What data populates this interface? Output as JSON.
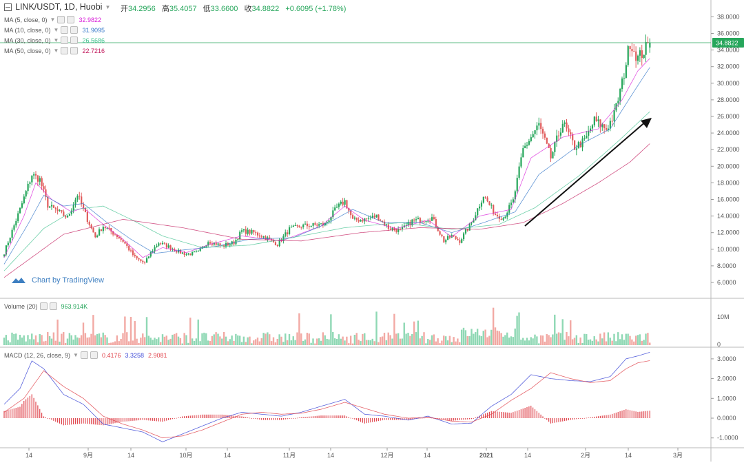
{
  "header": {
    "symbol": "LINK/USDT, 1D, Huobi",
    "open_label": "开",
    "open": "34.2956",
    "high_label": "高",
    "high": "35.4057",
    "low_label": "低",
    "low": "33.6600",
    "close_label": "收",
    "close": "34.8822",
    "change": "+0.6095 (+1.78%)"
  },
  "indicators": [
    {
      "label": "MA (5, close, 0)",
      "value": "32.9822",
      "color": "#d81bd8"
    },
    {
      "label": "MA (10, close, 0)",
      "value": "31.9095",
      "color": "#2e73c7"
    },
    {
      "label": "MA (30, close, 0)",
      "value": "26.5686",
      "color": "#3fc08e"
    },
    {
      "label": "MA (50, close, 0)",
      "value": "22.7216",
      "color": "#c2185b"
    }
  ],
  "volume_indicator": {
    "label": "Volume (20)",
    "value": "963.914K",
    "color": "#26a65b"
  },
  "macd_indicator": {
    "label": "MACD (12, 26, close, 9)",
    "hist": "0.4176",
    "macd": "3.3258",
    "signal": "2.9081"
  },
  "watermark": "Chart by TradingView",
  "colors": {
    "up": "#26a65b",
    "up_fill": "#8fd8b4",
    "down": "#e05b5b",
    "down_fill": "#f2a9a4",
    "macd": "#3b47d6",
    "signal": "#e0454d",
    "axis_text": "#555555"
  },
  "chart_data": {
    "type": "candlestick",
    "price_axis": {
      "ticks": [
        6,
        8,
        10,
        12,
        14,
        16,
        18,
        20,
        22,
        24,
        26,
        28,
        30,
        32,
        34,
        36,
        38
      ],
      "labels": [
        "6.0000",
        "8.0000",
        "10.0000",
        "12.0000",
        "14.0000",
        "16.0000",
        "18.0000",
        "20.0000",
        "22.0000",
        "24.0000",
        "26.0000",
        "28.0000",
        "30.0000",
        "32.0000",
        "34.0000",
        "36.0000",
        "38.0000"
      ],
      "current": "34.8822"
    },
    "volume_axis": {
      "labels": [
        "10M",
        "0"
      ]
    },
    "macd_axis": {
      "ticks": [
        3,
        2,
        1,
        0,
        -1
      ],
      "labels": [
        "3.0000",
        "2.0000",
        "1.0000",
        "0.0000",
        "-1.0000"
      ]
    },
    "x_labels": [
      "14",
      "9月",
      "14",
      "10月",
      "14",
      "11月",
      "14",
      "12月",
      "14",
      "2021",
      "14",
      "2月",
      "14",
      "3月"
    ],
    "price_anchors": [
      [
        0,
        9.6
      ],
      [
        8,
        14.8
      ],
      [
        14,
        19
      ],
      [
        18,
        18.4
      ],
      [
        22,
        15.3
      ],
      [
        28,
        14.4
      ],
      [
        32,
        13.8
      ],
      [
        37,
        16.6
      ],
      [
        42,
        13.6
      ],
      [
        46,
        11.5
      ],
      [
        50,
        12.8
      ],
      [
        56,
        11.8
      ],
      [
        60,
        11.0
      ],
      [
        66,
        9.0
      ],
      [
        71,
        8.3
      ],
      [
        74,
        9.6
      ],
      [
        78,
        10.8
      ],
      [
        84,
        10.2
      ],
      [
        88,
        9.7
      ],
      [
        92,
        9.4
      ],
      [
        98,
        9.6
      ],
      [
        103,
        11.0
      ],
      [
        110,
        10.4
      ],
      [
        116,
        10.8
      ],
      [
        120,
        12.2
      ],
      [
        126,
        12.0
      ],
      [
        132,
        11.4
      ],
      [
        138,
        10.6
      ],
      [
        144,
        12.4
      ],
      [
        150,
        12.8
      ],
      [
        156,
        12.9
      ],
      [
        162,
        13.0
      ],
      [
        168,
        15.0
      ],
      [
        172,
        15.8
      ],
      [
        176,
        13.5
      ],
      [
        182,
        13.6
      ],
      [
        188,
        14.0
      ],
      [
        194,
        12.6
      ],
      [
        200,
        12.2
      ],
      [
        206,
        13.4
      ],
      [
        212,
        13.6
      ],
      [
        216,
        13.8
      ],
      [
        222,
        11.0
      ],
      [
        226,
        11.6
      ],
      [
        230,
        11.0
      ],
      [
        236,
        13.2
      ],
      [
        242,
        16.5
      ],
      [
        248,
        14.2
      ],
      [
        252,
        13.8
      ],
      [
        257,
        15.8
      ],
      [
        262,
        22.0
      ],
      [
        270,
        25.0
      ],
      [
        276,
        21.0
      ],
      [
        282,
        25.3
      ],
      [
        288,
        22.3
      ],
      [
        293,
        23.0
      ],
      [
        298,
        25.5
      ],
      [
        304,
        24.5
      ],
      [
        308,
        26.2
      ],
      [
        312,
        30.0
      ],
      [
        316,
        35.0
      ],
      [
        320,
        33.0
      ],
      [
        324,
        34.2
      ],
      [
        326,
        34.88
      ]
    ],
    "ma_anchors": {
      "ma5": [
        [
          0,
          9.0
        ],
        [
          10,
          14.0
        ],
        [
          16,
          18.0
        ],
        [
          24,
          16.0
        ],
        [
          34,
          14.5
        ],
        [
          40,
          15.0
        ],
        [
          50,
          13.0
        ],
        [
          60,
          11.2
        ],
        [
          70,
          9.0
        ],
        [
          80,
          10.2
        ],
        [
          92,
          9.6
        ],
        [
          104,
          10.6
        ],
        [
          120,
          11.6
        ],
        [
          140,
          11.0
        ],
        [
          160,
          12.8
        ],
        [
          172,
          15.2
        ],
        [
          182,
          13.5
        ],
        [
          198,
          12.5
        ],
        [
          214,
          13.5
        ],
        [
          226,
          11.5
        ],
        [
          240,
          14.0
        ],
        [
          256,
          14.8
        ],
        [
          266,
          21.0
        ],
        [
          282,
          23.5
        ],
        [
          300,
          24.5
        ],
        [
          312,
          28.0
        ],
        [
          320,
          31.5
        ],
        [
          326,
          32.98
        ]
      ],
      "ma10": [
        [
          0,
          8.2
        ],
        [
          12,
          13.0
        ],
        [
          20,
          16.5
        ],
        [
          30,
          15.2
        ],
        [
          40,
          15.5
        ],
        [
          52,
          13.2
        ],
        [
          64,
          11.2
        ],
        [
          76,
          9.5
        ],
        [
          90,
          9.9
        ],
        [
          106,
          10.3
        ],
        [
          124,
          11.2
        ],
        [
          146,
          11.4
        ],
        [
          164,
          13.2
        ],
        [
          176,
          14.8
        ],
        [
          192,
          13.2
        ],
        [
          210,
          13.2
        ],
        [
          226,
          12.0
        ],
        [
          242,
          13.2
        ],
        [
          258,
          14.5
        ],
        [
          270,
          19.0
        ],
        [
          290,
          22.5
        ],
        [
          306,
          24.5
        ],
        [
          318,
          29.0
        ],
        [
          326,
          31.91
        ]
      ],
      "ma30": [
        [
          0,
          7.4
        ],
        [
          20,
          12.5
        ],
        [
          36,
          14.8
        ],
        [
          50,
          15.2
        ],
        [
          64,
          13.6
        ],
        [
          80,
          11.6
        ],
        [
          100,
          10.2
        ],
        [
          124,
          10.5
        ],
        [
          150,
          11.6
        ],
        [
          172,
          12.6
        ],
        [
          200,
          13.2
        ],
        [
          226,
          12.4
        ],
        [
          250,
          13.0
        ],
        [
          268,
          15.0
        ],
        [
          290,
          18.8
        ],
        [
          310,
          23.0
        ],
        [
          326,
          26.57
        ]
      ],
      "ma50": [
        [
          0,
          6.6
        ],
        [
          30,
          11.8
        ],
        [
          60,
          13.6
        ],
        [
          90,
          12.6
        ],
        [
          120,
          11.2
        ],
        [
          150,
          11.0
        ],
        [
          180,
          12.0
        ],
        [
          210,
          12.6
        ],
        [
          240,
          12.4
        ],
        [
          262,
          13.2
        ],
        [
          282,
          15.5
        ],
        [
          300,
          18.0
        ],
        [
          316,
          20.5
        ],
        [
          326,
          22.72
        ]
      ]
    },
    "macd_anchors": {
      "macd": [
        [
          0,
          0.7
        ],
        [
          8,
          1.5
        ],
        [
          14,
          2.9
        ],
        [
          20,
          2.5
        ],
        [
          30,
          1.2
        ],
        [
          40,
          0.7
        ],
        [
          50,
          -0.3
        ],
        [
          60,
          -0.5
        ],
        [
          70,
          -0.7
        ],
        [
          80,
          -1.2
        ],
        [
          90,
          -0.8
        ],
        [
          100,
          -0.4
        ],
        [
          110,
          0.0
        ],
        [
          120,
          0.3
        ],
        [
          130,
          0.2
        ],
        [
          140,
          0.1
        ],
        [
          150,
          0.3
        ],
        [
          160,
          0.6
        ],
        [
          172,
          0.95
        ],
        [
          182,
          0.2
        ],
        [
          192,
          0.1
        ],
        [
          204,
          -0.1
        ],
        [
          214,
          0.1
        ],
        [
          226,
          -0.3
        ],
        [
          236,
          -0.25
        ],
        [
          246,
          0.6
        ],
        [
          256,
          1.2
        ],
        [
          266,
          2.2
        ],
        [
          276,
          2.0
        ],
        [
          286,
          1.9
        ],
        [
          296,
          1.85
        ],
        [
          306,
          2.1
        ],
        [
          314,
          3.0
        ],
        [
          320,
          3.15
        ],
        [
          326,
          3.33
        ]
      ],
      "signal": [
        [
          0,
          0.3
        ],
        [
          10,
          1.0
        ],
        [
          20,
          2.4
        ],
        [
          30,
          1.6
        ],
        [
          40,
          1.0
        ],
        [
          50,
          0.1
        ],
        [
          60,
          -0.3
        ],
        [
          70,
          -0.6
        ],
        [
          80,
          -1.0
        ],
        [
          90,
          -0.9
        ],
        [
          100,
          -0.6
        ],
        [
          110,
          -0.2
        ],
        [
          120,
          0.2
        ],
        [
          130,
          0.3
        ],
        [
          140,
          0.2
        ],
        [
          150,
          0.25
        ],
        [
          160,
          0.45
        ],
        [
          172,
          0.8
        ],
        [
          182,
          0.5
        ],
        [
          192,
          0.2
        ],
        [
          204,
          0.0
        ],
        [
          214,
          0.05
        ],
        [
          226,
          -0.15
        ],
        [
          236,
          -0.2
        ],
        [
          246,
          0.2
        ],
        [
          256,
          0.9
        ],
        [
          266,
          1.5
        ],
        [
          276,
          2.3
        ],
        [
          286,
          2.0
        ],
        [
          296,
          1.8
        ],
        [
          306,
          1.9
        ],
        [
          314,
          2.5
        ],
        [
          320,
          2.8
        ],
        [
          326,
          2.91
        ]
      ]
    }
  }
}
